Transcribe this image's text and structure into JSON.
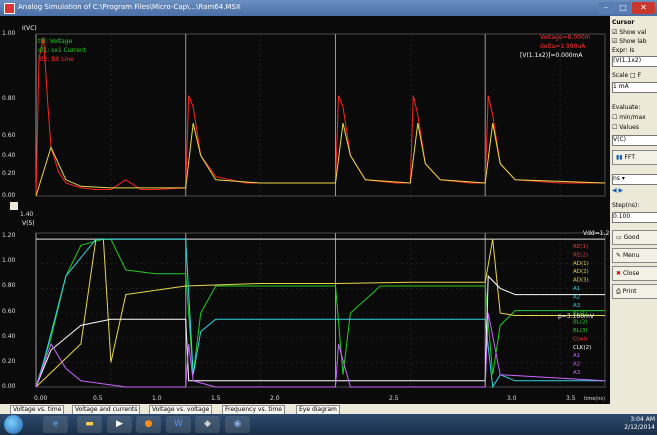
{
  "window": {
    "title": "Analog Simulation of C:\\Program Files\\Micro-Cap\\...\\Ram64.MSX",
    "controls": [
      "–",
      "□",
      "✕"
    ]
  },
  "upper_plot": {
    "ylabel": "I(VC)",
    "ticks_y": [
      "1.00",
      "0.80",
      "0.60",
      "0.40",
      "0.20",
      "0.00"
    ],
    "legend": [
      "tbl: Voltage",
      "dl1: sx1 Current",
      "dl2: Bit Line"
    ],
    "legend_right": [
      "Voltage=0.000m",
      "delta=1.990uA",
      "[V(1.1x2)]=0.000mA"
    ]
  },
  "lower_plot": {
    "ylabel": "V(5)",
    "ticks_y": [
      "1.20",
      "1.00",
      "0.80",
      "0.60",
      "0.40",
      "0.20",
      "0.00"
    ],
    "ticks_x": [
      "0.00",
      "0.5",
      "1.0",
      "1.5",
      "2.0",
      "2.5",
      "3.0",
      "3.5"
    ],
    "xunit": "time(ns)",
    "axis_readout": "1.40",
    "value_label": "Vdd=1.2",
    "trace_labels": [
      "RE(1)",
      "RE(2)",
      "AD(1)",
      "AD(2)",
      "AD(3)",
      "A1",
      "A2",
      "A3",
      "BL(1)",
      "BL(2)",
      "BL(3)",
      "C(wl)",
      "CLK(2)",
      "A1",
      "A2",
      "A3"
    ],
    "marker": "p=3.160mV"
  },
  "right_panel": {
    "header": "Cursor",
    "checkbox1": "Show val",
    "checkbox2": "Show lab",
    "field_label": "Expr: Is",
    "field_value": "(V(1.1x2)",
    "scale_label": "Scale  □ F",
    "scale_value": "1 mA",
    "evaluate": "Evaluate:",
    "evaluate_opt1": "min/max",
    "evaluate_opt2": "Values",
    "expr_box": "V(C)",
    "fft_button": "FFT",
    "step_label": "Step(ns):",
    "step_value": "0.100",
    "select_value": "ns",
    "good_button": "Good",
    "menu_button": "Menu",
    "close_button": "Close",
    "print_button": "Print"
  },
  "tabs": [
    "Voltage vs. time",
    "Voltage and currents",
    "Voltage vs. voltage",
    "Frequency vs. time",
    "Eye diagram"
  ],
  "taskbar": {
    "time": "3:04 AM",
    "date": "2/12/2014"
  },
  "chart_data": {
    "type": "line",
    "title": "",
    "upper": {
      "ylim": [
        0,
        1.0
      ],
      "xlim": [
        0,
        3.8
      ],
      "series": [
        {
          "color": "#ff2222",
          "x": [
            0.0,
            0.02,
            0.05,
            0.08,
            0.1,
            0.15,
            0.2,
            0.3,
            0.4,
            0.5,
            0.6,
            0.7,
            0.8,
            1.0,
            1.02,
            1.05,
            1.1,
            1.2,
            1.4,
            1.6,
            1.8,
            2.0,
            2.02,
            2.05,
            2.1,
            2.2,
            2.4,
            2.5,
            2.52,
            2.55,
            2.6,
            2.7,
            2.9,
            3.0,
            3.02,
            3.05,
            3.1,
            3.2,
            3.5,
            3.8
          ],
          "y": [
            0.0,
            0.85,
            0.98,
            0.55,
            0.3,
            0.15,
            0.08,
            0.05,
            0.04,
            0.04,
            0.1,
            0.04,
            0.04,
            0.05,
            0.62,
            0.55,
            0.25,
            0.12,
            0.08,
            0.08,
            0.08,
            0.08,
            0.62,
            0.55,
            0.25,
            0.1,
            0.08,
            0.08,
            0.62,
            0.5,
            0.2,
            0.1,
            0.08,
            0.08,
            0.62,
            0.5,
            0.2,
            0.1,
            0.08,
            0.08
          ]
        },
        {
          "color": "#e8d84a",
          "x": [
            0.0,
            0.1,
            0.2,
            0.3,
            0.5,
            0.8,
            1.0,
            1.05,
            1.1,
            1.2,
            1.5,
            2.0,
            2.05,
            2.1,
            2.2,
            2.5,
            2.55,
            2.6,
            2.7,
            3.0,
            3.05,
            3.1,
            3.2,
            3.8
          ],
          "y": [
            0.0,
            0.3,
            0.1,
            0.06,
            0.05,
            0.05,
            0.05,
            0.45,
            0.25,
            0.1,
            0.08,
            0.08,
            0.45,
            0.25,
            0.1,
            0.08,
            0.45,
            0.2,
            0.1,
            0.08,
            0.45,
            0.2,
            0.1,
            0.08
          ]
        }
      ]
    },
    "lower": {
      "ylim": [
        0,
        1.25
      ],
      "xlim": [
        0,
        3.8
      ],
      "series": [
        {
          "name": "A1",
          "color": "#22cc22",
          "x": [
            0.0,
            0.1,
            0.2,
            0.3,
            0.45,
            0.5,
            0.6,
            0.8,
            1.0,
            1.05,
            1.1,
            1.2,
            1.5,
            2.0,
            2.05,
            2.1,
            2.3,
            2.5,
            3.0,
            3.05,
            3.1,
            3.2,
            3.5,
            3.8
          ],
          "y": [
            0.0,
            0.4,
            0.9,
            1.15,
            1.2,
            1.2,
            0.95,
            0.92,
            0.92,
            0.1,
            0.6,
            0.82,
            0.82,
            0.82,
            0.1,
            0.6,
            0.82,
            0.82,
            0.82,
            0.1,
            0.5,
            0.62,
            0.62,
            0.62
          ]
        },
        {
          "name": "A2",
          "color": "#e8d84a",
          "x": [
            0.0,
            0.3,
            0.4,
            0.45,
            0.5,
            0.6,
            1.0,
            1.5,
            2.0,
            2.5,
            3.0,
            3.05,
            3.1,
            3.2,
            3.8
          ],
          "y": [
            0.0,
            0.35,
            1.2,
            1.2,
            0.2,
            0.75,
            0.82,
            0.84,
            0.84,
            0.85,
            0.85,
            1.2,
            0.6,
            0.58,
            0.58
          ]
        },
        {
          "name": "A3",
          "color": "#33d6e0",
          "x": [
            0.0,
            0.05,
            0.2,
            0.4,
            0.5,
            0.55,
            1.0,
            1.05,
            1.1,
            1.2,
            1.5,
            3.0,
            3.05,
            3.1,
            3.2,
            3.8
          ],
          "y": [
            0.0,
            0.2,
            0.9,
            1.2,
            1.2,
            1.2,
            1.2,
            0.1,
            0.45,
            0.55,
            0.55,
            0.55,
            0.0,
            0.1,
            0.05,
            0.05
          ]
        },
        {
          "name": "BL(1)",
          "color": "#ffffff",
          "x": [
            0.0,
            0.1,
            0.3,
            0.5,
            1.0,
            1.02,
            1.1,
            1.2,
            1.5,
            2.0,
            2.5,
            3.0,
            3.02,
            3.1,
            3.2,
            3.8
          ],
          "y": [
            0.0,
            0.3,
            0.5,
            0.55,
            0.55,
            0.05,
            0.05,
            0.05,
            0.05,
            0.05,
            0.05,
            0.05,
            0.9,
            0.8,
            0.75,
            0.75
          ]
        },
        {
          "name": "BL(2)",
          "color": "#cc66ff",
          "x": [
            0.0,
            0.1,
            0.2,
            0.3,
            0.6,
            1.0,
            1.02,
            1.05,
            1.2,
            2.0,
            2.02,
            2.1,
            2.5,
            3.0,
            3.02,
            3.1,
            3.8
          ],
          "y": [
            0.0,
            0.35,
            0.15,
            0.05,
            0.0,
            0.0,
            0.35,
            0.05,
            0.0,
            0.0,
            0.35,
            0.0,
            0.0,
            0.0,
            0.6,
            0.1,
            0.05
          ]
        }
      ]
    }
  }
}
